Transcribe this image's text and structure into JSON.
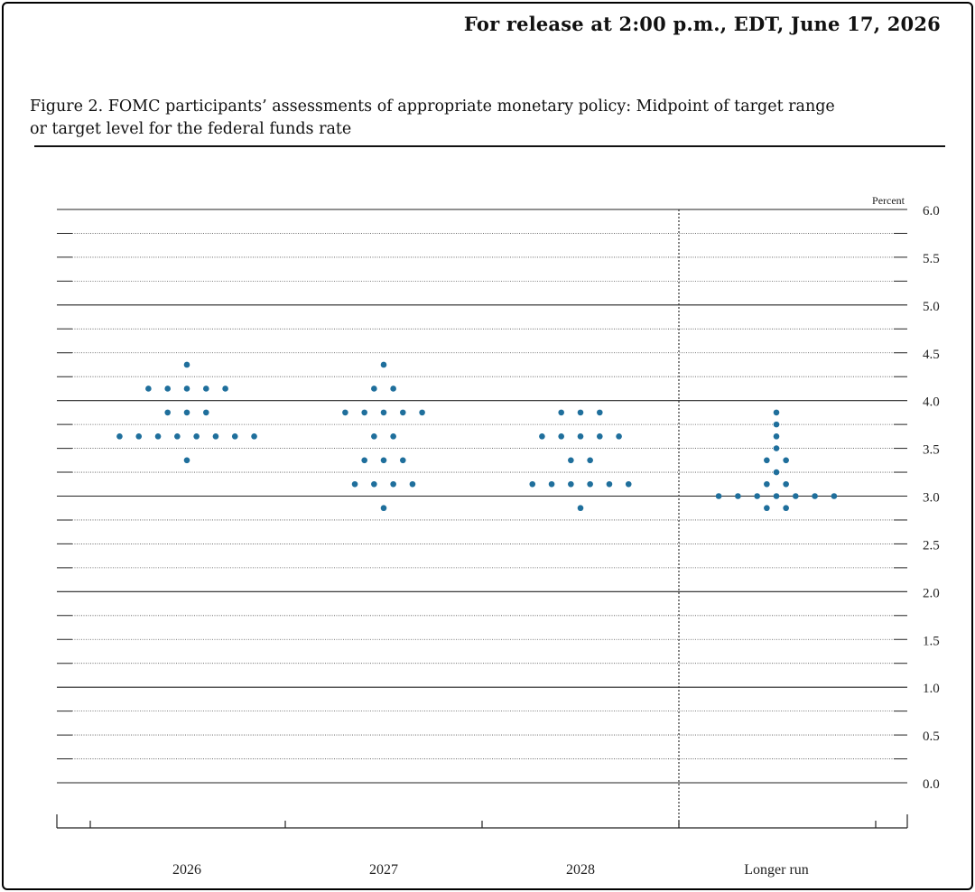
{
  "header": {
    "release": "For release at 2:00 p.m., EDT, June 17, 2026"
  },
  "figure": {
    "title_line1": "Figure 2. FOMC participants’ assessments of appropriate monetary policy: Midpoint of target range",
    "title_line2": "or target level for the federal funds rate"
  },
  "chart_data": {
    "type": "scatter",
    "subtype": "dot-plot",
    "ylabel": "Percent",
    "ylim": [
      0,
      6
    ],
    "y_ticks": [
      "0.0",
      "0.5",
      "1.0",
      "1.5",
      "2.0",
      "2.5",
      "3.0",
      "3.5",
      "4.0",
      "4.5",
      "5.0",
      "5.5",
      "6.0"
    ],
    "categories": [
      "2026",
      "2027",
      "2028",
      "Longer run"
    ],
    "grid": true,
    "dots": [
      {
        "category": "2026",
        "rows": [
          [
            4.375,
            1
          ],
          [
            4.125,
            5
          ],
          [
            3.875,
            3
          ],
          [
            3.625,
            8
          ],
          [
            3.375,
            1
          ]
        ]
      },
      {
        "category": "2027",
        "rows": [
          [
            4.375,
            1
          ],
          [
            4.125,
            2
          ],
          [
            3.875,
            5
          ],
          [
            3.625,
            2
          ],
          [
            3.375,
            3
          ],
          [
            3.125,
            4
          ],
          [
            2.875,
            1
          ]
        ]
      },
      {
        "category": "2028",
        "rows": [
          [
            3.875,
            3
          ],
          [
            3.625,
            5
          ],
          [
            3.375,
            2
          ],
          [
            3.125,
            6
          ],
          [
            2.875,
            1
          ]
        ]
      },
      {
        "category": "Longer run",
        "rows": [
          [
            3.875,
            1
          ],
          [
            3.75,
            1
          ],
          [
            3.625,
            1
          ],
          [
            3.5,
            1
          ],
          [
            3.375,
            2
          ],
          [
            3.25,
            1
          ],
          [
            3.125,
            2
          ],
          [
            3.0,
            7
          ],
          [
            2.875,
            2
          ]
        ]
      }
    ],
    "dot_color": "#1f6f9c"
  }
}
